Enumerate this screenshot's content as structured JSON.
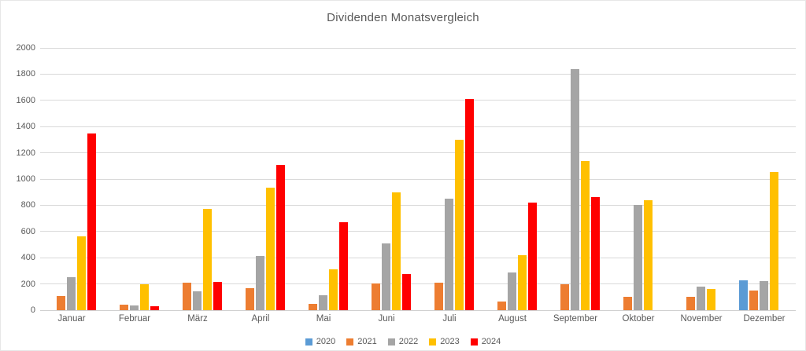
{
  "chart_data": {
    "type": "bar",
    "title": "Dividenden Monatsvergleich",
    "categories": [
      "Januar",
      "Februar",
      "März",
      "April",
      "Mai",
      "Juni",
      "Juli",
      "August",
      "September",
      "Oktober",
      "November",
      "Dezember"
    ],
    "series": [
      {
        "name": "2020",
        "color": "#5B9BD5",
        "values": [
          0,
          0,
          0,
          0,
          0,
          0,
          0,
          0,
          0,
          0,
          0,
          230
        ]
      },
      {
        "name": "2021",
        "color": "#ED7D31",
        "values": [
          110,
          40,
          210,
          170,
          50,
          205,
          210,
          65,
          200,
          100,
          100,
          150
        ]
      },
      {
        "name": "2022",
        "color": "#A5A5A5",
        "values": [
          250,
          35,
          145,
          415,
          115,
          510,
          850,
          290,
          1840,
          800,
          180,
          220
        ]
      },
      {
        "name": "2023",
        "color": "#FFC000",
        "values": [
          560,
          200,
          775,
          935,
          310,
          900,
          1300,
          420,
          1135,
          840,
          160,
          1055
        ]
      },
      {
        "name": "2024",
        "color": "#FF0000",
        "values": [
          1350,
          30,
          215,
          1105,
          670,
          275,
          1610,
          820,
          865,
          0,
          0,
          0
        ]
      }
    ],
    "ylim": [
      0,
      2000
    ],
    "ytick_step": 200,
    "ytick_labels": [
      "0",
      "200",
      "400",
      "600",
      "800",
      "1000",
      "1200",
      "1400",
      "1600",
      "1800",
      "2000"
    ],
    "grid": "horizontal",
    "legend_position": "bottom",
    "colors": {
      "text": "#595959",
      "gridline": "#D9D9D9",
      "background": "#FFFFFF"
    }
  }
}
